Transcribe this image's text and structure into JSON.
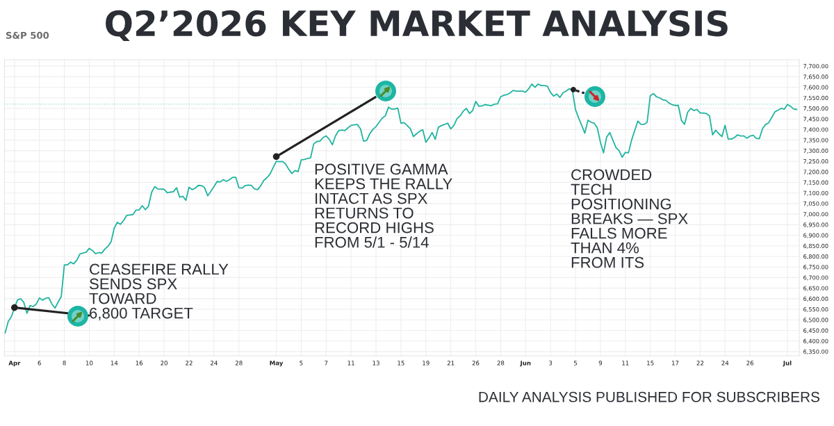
{
  "chart_data": {
    "type": "line",
    "title": "Q2’2026 KEY MARKET ANALYSIS",
    "subtitle": "S&P 500",
    "categories": [
      null,
      null,
      null,
      "Apr",
      null,
      null,
      null,
      null,
      null,
      null,
      null,
      "6",
      null,
      null,
      null,
      null,
      null,
      null,
      null,
      "8",
      null,
      null,
      null,
      null,
      null,
      null,
      null,
      "10",
      null,
      null,
      null,
      null,
      null,
      null,
      null,
      "14",
      null,
      null,
      null,
      null,
      null,
      null,
      null,
      "16",
      null,
      null,
      null,
      null,
      null,
      null,
      null,
      "20",
      null,
      null,
      null,
      null,
      null,
      null,
      null,
      "22",
      null,
      null,
      null,
      null,
      null,
      null,
      null,
      "24",
      null,
      null,
      null,
      null,
      null,
      null,
      null,
      "28",
      null,
      null,
      null,
      null,
      null,
      null,
      null,
      null,
      null,
      null,
      null,
      "May",
      null,
      null,
      null,
      null,
      null,
      null,
      null,
      "5",
      null,
      null,
      null,
      null,
      null,
      null,
      null,
      "7",
      null,
      null,
      null,
      null,
      null,
      null,
      null,
      "11",
      null,
      null,
      null,
      null,
      null,
      null,
      null,
      "13",
      null,
      null,
      null,
      null,
      null,
      null,
      null,
      "15",
      null,
      null,
      null,
      null,
      null,
      null,
      null,
      "19",
      null,
      null,
      null,
      null,
      null,
      null,
      null,
      "21",
      null,
      null,
      null,
      null,
      null,
      null,
      null,
      "26",
      null,
      null,
      null,
      null,
      null,
      null,
      null,
      "28",
      null,
      null,
      null,
      null,
      null,
      null,
      null,
      "Jun",
      null,
      null,
      null,
      null,
      null,
      null,
      null,
      "3",
      null,
      null,
      null,
      null,
      null,
      null,
      null,
      "5",
      null,
      null,
      null,
      null,
      null,
      null,
      null,
      "9",
      null,
      null,
      null,
      null,
      null,
      null,
      null,
      "11",
      null,
      null,
      null,
      null,
      null,
      null,
      null,
      "15",
      null,
      null,
      null,
      null,
      null,
      null,
      null,
      "17",
      null,
      null,
      null,
      null,
      null,
      null,
      null,
      "22",
      null,
      null,
      null,
      null,
      null,
      null,
      null,
      "24",
      null,
      null,
      null,
      null,
      null,
      null,
      null,
      "26",
      null,
      null,
      null,
      null,
      null,
      null,
      null,
      null,
      null,
      null,
      null,
      "Jul",
      null,
      null,
      null
    ],
    "series": [
      {
        "color": "#1fb49f",
        "values": [
          6438,
          6493,
          6515,
          6558,
          6595,
          6600,
          6582,
          6531,
          6568,
          6563,
          6575,
          6604,
          6593,
          6602,
          6605,
          6575,
          6556,
          6584,
          6610,
          6760,
          6760,
          6773,
          6765,
          6782,
          6812,
          6816,
          6820,
          6838,
          6828,
          6813,
          6818,
          6816,
          6835,
          6848,
          6870,
          6934,
          6961,
          6952,
          6970,
          6994,
          6996,
          6998,
          7019,
          7020,
          7040,
          7021,
          7038,
          7103,
          7130,
          7119,
          7118,
          7118,
          7101,
          7104,
          7106,
          7125,
          7080,
          7085,
          7065,
          7127,
          7116,
          7123,
          7136,
          7135,
          7125,
          7087,
          7108,
          7130,
          7154,
          7152,
          7163,
          7155,
          7163,
          7174,
          7174,
          7125,
          7123,
          7135,
          7137,
          7136,
          7119,
          7116,
          7134,
          7160,
          7172,
          7190,
          7220,
          7250,
          7248,
          7249,
          7237,
          7212,
          7192,
          7206,
          7201,
          7256,
          7259,
          7263,
          7266,
          7332,
          7343,
          7345,
          7362,
          7370,
          7354,
          7328,
          7370,
          7395,
          7398,
          7395,
          7408,
          7420,
          7422,
          7424,
          7404,
          7345,
          7348,
          7380,
          7401,
          7414,
          7435,
          7454,
          7465,
          7506,
          7497,
          7497,
          7501,
          7430,
          7433,
          7419,
          7404,
          7367,
          7380,
          7392,
          7399,
          7340,
          7360,
          7386,
          7354,
          7410,
          7419,
          7424,
          7430,
          7403,
          7420,
          7452,
          7465,
          7487,
          7500,
          7476,
          7490,
          7533,
          7510,
          7512,
          7518,
          7515,
          7513,
          7520,
          7522,
          7555,
          7562,
          7565,
          7573,
          7585,
          7582,
          7582,
          7582,
          7577,
          7593,
          7615,
          7600,
          7615,
          7608,
          7608,
          7605,
          7575,
          7558,
          7568,
          7552,
          7574,
          7582,
          7593,
          7586,
          7495,
          7455,
          7420,
          7383,
          7444,
          7435,
          7430,
          7408,
          7340,
          7290,
          7364,
          7386,
          7350,
          7315,
          7300,
          7269,
          7292,
          7290,
          7350,
          7395,
          7440,
          7425,
          7424,
          7435,
          7560,
          7570,
          7555,
          7550,
          7541,
          7538,
          7525,
          7518,
          7514,
          7514,
          7443,
          7425,
          7482,
          7500,
          7490,
          7495,
          7478,
          7478,
          7476,
          7465,
          7375,
          7397,
          7380,
          7367,
          7420,
          7355,
          7355,
          7362,
          7375,
          7370,
          7370,
          7359,
          7369,
          7373,
          7358,
          7357,
          7404,
          7424,
          7432,
          7458,
          7484,
          7492,
          7500,
          7496,
          7519,
          7510,
          7497,
          7495
        ]
      }
    ],
    "ylim": [
      6330,
      7730
    ],
    "yticks": [
      {
        "value": 6350,
        "label": "6,350.00"
      },
      {
        "value": 6400,
        "label": "6,400.00"
      },
      {
        "value": 6450,
        "label": "6,450.00"
      },
      {
        "value": 6500,
        "label": "6,500.00"
      },
      {
        "value": 6550,
        "label": "6,550.00"
      },
      {
        "value": 6600,
        "label": "6,600.00"
      },
      {
        "value": 6650,
        "label": "6,650.00"
      },
      {
        "value": 6700,
        "label": "6,700.00"
      },
      {
        "value": 6750,
        "label": "6,750.00"
      },
      {
        "value": 6800,
        "label": "6,800.00"
      },
      {
        "value": 6850,
        "label": "6,850.00"
      },
      {
        "value": 6900,
        "label": "6,900.00"
      },
      {
        "value": 6950,
        "label": "6,950.00"
      },
      {
        "value": 7000,
        "label": "7,000.00"
      },
      {
        "value": 7050,
        "label": "7,050.00"
      },
      {
        "value": 7100,
        "label": "7,100.00"
      },
      {
        "value": 7150,
        "label": "7,150.00"
      },
      {
        "value": 7200,
        "label": "7,200.00"
      },
      {
        "value": 7250,
        "label": "7,250.00"
      },
      {
        "value": 7300,
        "label": "7,300.00"
      },
      {
        "value": 7350,
        "label": "7,350.00"
      },
      {
        "value": 7400,
        "label": "7,400.00"
      },
      {
        "value": 7450,
        "label": "7,450.00"
      },
      {
        "value": 7500,
        "label": "7,500.00"
      },
      {
        "value": 7550,
        "label": "7,550.00"
      },
      {
        "value": 7600,
        "label": "7,600.00"
      },
      {
        "value": 7650,
        "label": "7,650.00"
      },
      {
        "value": 7700,
        "label": "7,700.00"
      }
    ],
    "ref_lines": [
      {
        "axis": "y",
        "value": 7520,
        "color": "#8fd9cc",
        "line_style": "dotted"
      }
    ],
    "grid": true,
    "annotations": [
      {
        "text": "CEASEFIRE RALLY\nSENDS SPX\nTOWARD\n6,800 TARGET",
        "x": "Apr",
        "y": 6558
      },
      {
        "text": "POSITIVE GAMMA\nKEEPS THE RALLY\nINTACT AS SPX\nRETURNS TO\nRECORD HIGHS\nFROM 5/1 - 5/14",
        "x": "May",
        "y": 7272
      },
      "CROWDED\nTECH\nPOSITIONING\nBREAKS — SPX\nFALLS MORE\nTHAN 4%\nFROM ITS",
      "DAILY ANALYSIS PUBLISHED FOR SUBSCRIBERS"
    ]
  }
}
